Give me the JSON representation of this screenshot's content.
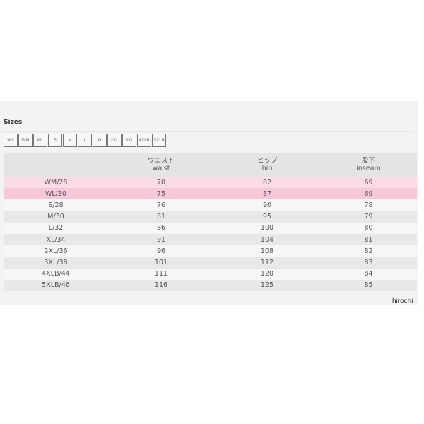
{
  "title": "Sizes",
  "size_buttons": [
    "WS",
    "WM",
    "WL",
    "S",
    "M",
    "L",
    "XL",
    "2XL",
    "3XL",
    "4XLB",
    "5XLB"
  ],
  "headers": [
    {
      "jp": "",
      "en": ""
    },
    {
      "jp": "ウエスト",
      "en": "waist"
    },
    {
      "jp": "ヒップ",
      "en": "hip"
    },
    {
      "jp": "股下",
      "en": "inseam"
    }
  ],
  "rows": [
    [
      "WM/28",
      "70",
      "82",
      "69"
    ],
    [
      "WL/30",
      "75",
      "87",
      "69"
    ],
    [
      "S/28",
      "76",
      "90",
      "78"
    ],
    [
      "M/30",
      "81",
      "95",
      "79"
    ],
    [
      "L/32",
      "86",
      "100",
      "80"
    ],
    [
      "XL/34",
      "91",
      "104",
      "81"
    ],
    [
      "2XL/36",
      "96",
      "108",
      "82"
    ],
    [
      "3XL/38",
      "101",
      "112",
      "83"
    ],
    [
      "4XLB/44",
      "111",
      "120",
      "84"
    ],
    [
      "5XLB/46",
      "116",
      "125",
      "85"
    ]
  ],
  "watermark": "hirochi",
  "colors": {
    "highlight_light": "#fadbe6",
    "highlight_dark": "#f7c7da",
    "header_bg": "#e4e4e4"
  }
}
